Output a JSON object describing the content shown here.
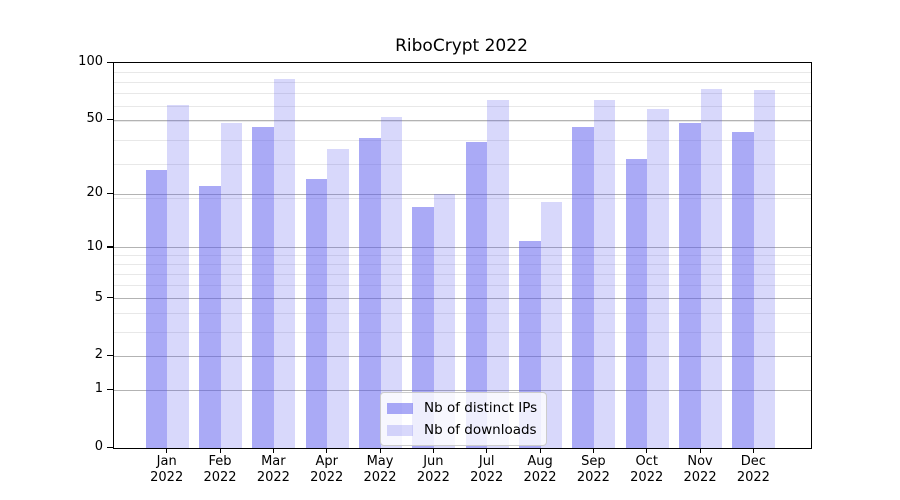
{
  "chart_data": {
    "type": "bar",
    "title": "RiboCrypt 2022",
    "categories": [
      "Jan",
      "Feb",
      "Mar",
      "Apr",
      "May",
      "Jun",
      "Jul",
      "Aug",
      "Sep",
      "Oct",
      "Nov",
      "Dec"
    ],
    "year_label": "2022",
    "series": [
      {
        "name": "Nb of distinct IPs",
        "color": "#5656ed",
        "alpha": 0.5,
        "values": [
          27,
          22,
          46,
          24,
          40,
          17,
          38,
          11,
          46,
          31,
          48,
          43
        ]
      },
      {
        "name": "Nb of downloads",
        "color": "#5656ed",
        "alpha": 0.23,
        "values": [
          60,
          48,
          82,
          35,
          52,
          20,
          64,
          18,
          64,
          57,
          73,
          72
        ]
      }
    ],
    "yscale": "log1p",
    "ylim": [
      0,
      100
    ],
    "yticks": [
      0,
      1,
      2,
      5,
      10,
      20,
      50,
      100
    ],
    "yticks_minor": [
      3,
      4,
      6,
      7,
      8,
      9,
      19,
      29,
      39,
      49,
      59,
      69,
      79,
      89
    ],
    "xlabel": "",
    "ylabel": "",
    "grid": true,
    "legend_position": "lower center",
    "colors": {
      "grid_major": "#b3b3b3",
      "grid_minor": "#e8e8e8",
      "spine": "#000000",
      "text": "#000000",
      "legend_border": "#cccccc",
      "legend_bg": "rgba(255,255,255,0.8)"
    }
  }
}
